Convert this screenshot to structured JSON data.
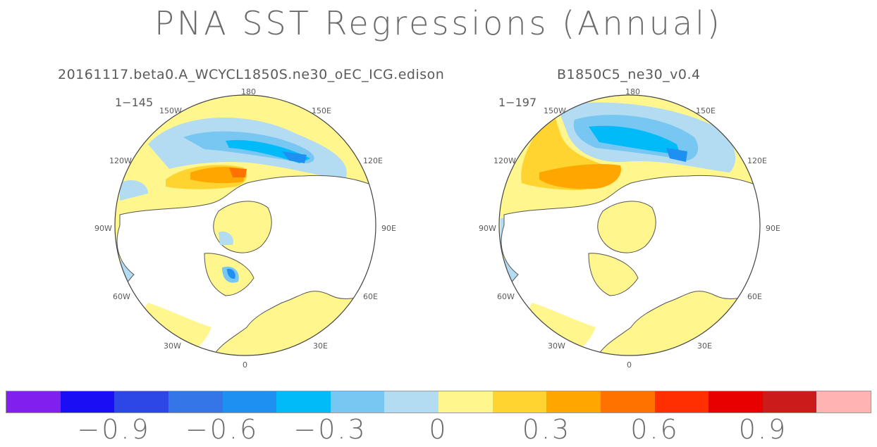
{
  "title": "PNA SST Regressions (Annual)",
  "panels": [
    {
      "title": "20161117.beta0.A_WCYCL1850S.ne30_oEC_ICG.edison",
      "years": "1−145"
    },
    {
      "title": "B1850C5_ne30_v0.4",
      "years": "1−197"
    }
  ],
  "longitude_labels": [
    "180",
    "150E",
    "120E",
    "90E",
    "60E",
    "30E",
    "0",
    "30W",
    "60W",
    "90W",
    "120W",
    "150W"
  ],
  "colorbar": {
    "colors": [
      "#8020ee",
      "#1a0ef5",
      "#2d46e6",
      "#3576e6",
      "#1e90f2",
      "#00bbf8",
      "#78c6f2",
      "#b3dcf2",
      "#fff68e",
      "#ffd330",
      "#ffa700",
      "#ff7200",
      "#ff2f00",
      "#e80000",
      "#cc1b1b",
      "#ffb3b3"
    ],
    "labels": [
      "−0.9",
      "−0.6",
      "−0.3",
      "0",
      "0.3",
      "0.6",
      "0.9"
    ]
  },
  "colors": {
    "land": "#ffffff",
    "coast": "#555555",
    "positive_weak": "#fff68e",
    "positive_mid": "#ffd330",
    "positive_strong": "#ffa700",
    "positive_max": "#ff7200",
    "negative_weak": "#b3dcf2",
    "negative_mid": "#78c6f2",
    "negative_strong": "#00bbf8",
    "negative_max": "#1e90f2"
  }
}
